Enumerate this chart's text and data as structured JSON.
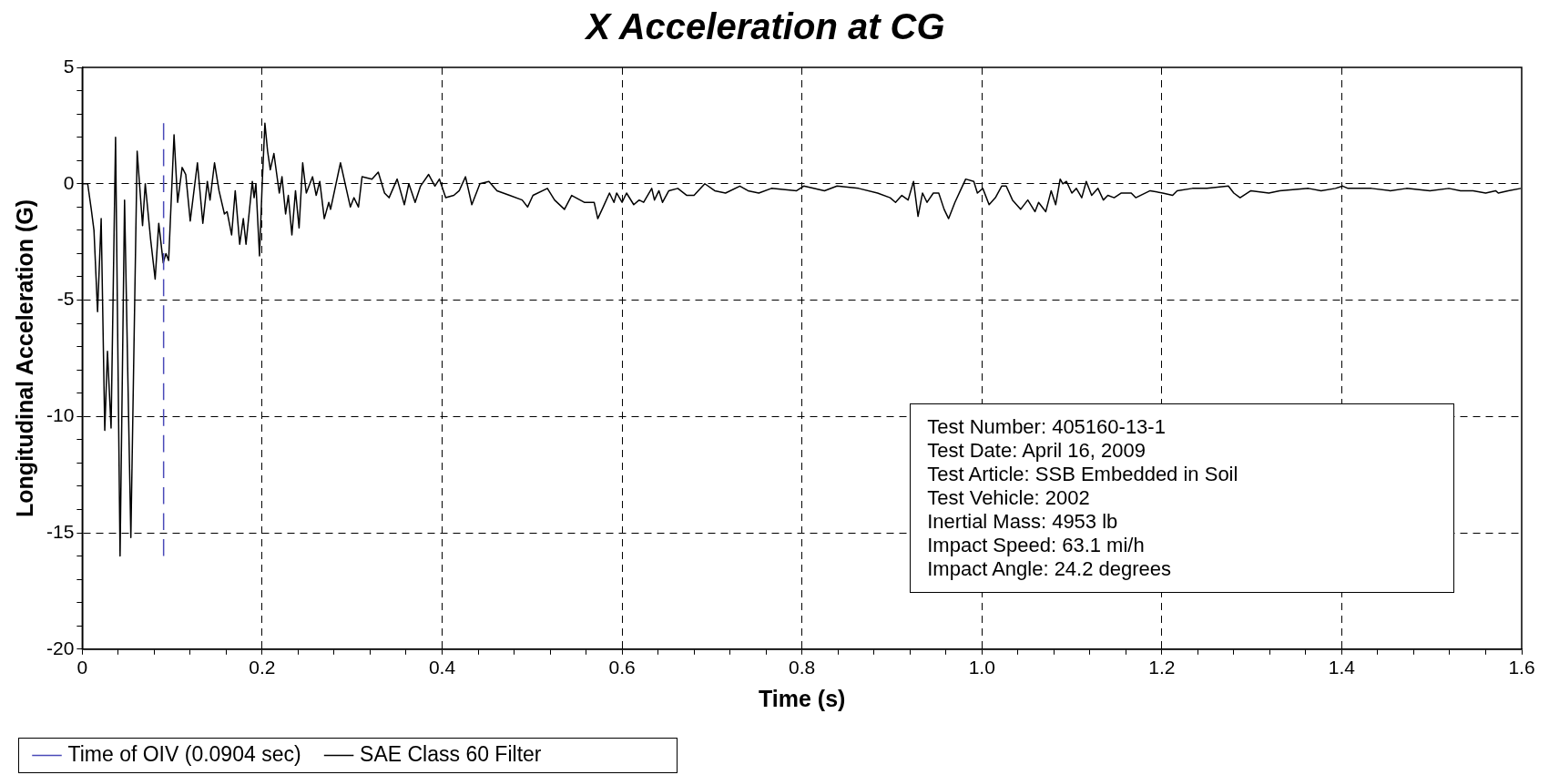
{
  "chart_data": {
    "type": "line",
    "title": "X Acceleration at CG",
    "xlabel": "Time (s)",
    "ylabel": "Longitudinal Acceleration (G)",
    "xlim": [
      0,
      1.6
    ],
    "xticks": [
      0,
      {
        "value": 0.04,
        "label": null
      },
      {
        "value": 0.08,
        "label": null
      },
      {
        "value": 0.12,
        "label": null
      },
      {
        "value": 0.16,
        "label": null
      },
      0.2,
      {
        "value": 0.24,
        "label": null
      },
      {
        "value": 0.28,
        "label": null
      },
      {
        "value": 0.32,
        "label": null
      },
      {
        "value": 0.36,
        "label": null
      },
      0.4,
      {
        "value": 0.44,
        "label": null
      },
      {
        "value": 0.48,
        "label": null
      },
      {
        "value": 0.52,
        "label": null
      },
      {
        "value": 0.56,
        "label": null
      },
      0.6,
      {
        "value": 0.64,
        "label": null
      },
      {
        "value": 0.68,
        "label": null
      },
      {
        "value": 0.72,
        "label": null
      },
      {
        "value": 0.76,
        "label": null
      },
      0.8,
      {
        "value": 0.84,
        "label": null
      },
      {
        "value": 0.88,
        "label": null
      },
      {
        "value": 0.92,
        "label": null
      },
      {
        "value": 0.96,
        "label": null
      },
      {
        "value": 1,
        "label": "1.0"
      },
      {
        "value": 1.04,
        "label": null
      },
      {
        "value": 1.08,
        "label": null
      },
      {
        "value": 1.12,
        "label": null
      },
      {
        "value": 1.16,
        "label": null
      },
      1.2,
      {
        "value": 1.24,
        "label": null
      },
      {
        "value": 1.28,
        "label": null
      },
      {
        "value": 1.32,
        "label": null
      },
      {
        "value": 1.36,
        "label": null
      },
      1.4,
      {
        "value": 1.44,
        "label": null
      },
      {
        "value": 1.48,
        "label": null
      },
      {
        "value": 1.52,
        "label": null
      },
      {
        "value": 1.56,
        "label": null
      },
      1.6
    ],
    "ylim": [
      -20,
      5
    ],
    "yticks": [
      -20,
      {
        "value": -19,
        "label": null
      },
      {
        "value": -18,
        "label": null
      },
      {
        "value": -17,
        "label": null
      },
      {
        "value": -16,
        "label": null
      },
      -15,
      {
        "value": -14,
        "label": null
      },
      {
        "value": -13,
        "label": null
      },
      {
        "value": -12,
        "label": null
      },
      {
        "value": -11,
        "label": null
      },
      -10,
      {
        "value": -9,
        "label": null
      },
      {
        "value": -8,
        "label": null
      },
      {
        "value": -7,
        "label": null
      },
      {
        "value": -6,
        "label": null
      },
      -5,
      {
        "value": -4,
        "label": null
      },
      {
        "value": -3,
        "label": null
      },
      {
        "value": -2,
        "label": null
      },
      {
        "value": -1,
        "label": null
      },
      0,
      {
        "value": 1,
        "label": null
      },
      {
        "value": 2,
        "label": null
      },
      {
        "value": 3,
        "label": null
      },
      {
        "value": 4,
        "label": null
      },
      5
    ],
    "grid": true,
    "legend": "bottom",
    "marker": "none",
    "annotations": [
      "Test Number: 405160-13-1",
      "Test Date: April 16, 2009",
      "Test Article: SSB Embedded in Soil",
      "Test Vehicle: 2002",
      "Inertial Mass: 4953 lb",
      "Impact Speed: 63.1 mi/h",
      "Impact Angle: 24.2 degrees"
    ],
    "series": [
      {
        "name": "Time of OIV (0.0904 sec)",
        "type": "line",
        "line_style": "dashed",
        "color": "#4a4ab8",
        "x": [
          0.0904,
          0.0904
        ],
        "values": [
          -16,
          2.6
        ]
      },
      {
        "name": "SAE Class 60 Filter",
        "type": "line",
        "line_style": "solid",
        "color": "#000000",
        "x": [
          0,
          0.006,
          0.01,
          0.013,
          0.017,
          0.021,
          0.025,
          0.028,
          0.032,
          0.037,
          0.042,
          0.047,
          0.054,
          0.061,
          0.067,
          0.07,
          0.076,
          0.081,
          0.085,
          0.09,
          0.093,
          0.096,
          0.102,
          0.106,
          0.111,
          0.115,
          0.12,
          0.128,
          0.134,
          0.139,
          0.142,
          0.147,
          0.152,
          0.158,
          0.161,
          0.166,
          0.17,
          0.175,
          0.179,
          0.182,
          0.189,
          0.191,
          0.193,
          0.197,
          0.2,
          0.203,
          0.206,
          0.209,
          0.213,
          0.219,
          0.222,
          0.226,
          0.229,
          0.233,
          0.237,
          0.241,
          0.245,
          0.249,
          0.256,
          0.26,
          0.264,
          0.269,
          0.274,
          0.276,
          0.287,
          0.298,
          0.302,
          0.307,
          0.311,
          0.322,
          0.329,
          0.336,
          0.341,
          0.35,
          0.358,
          0.363,
          0.37,
          0.376,
          0.385,
          0.392,
          0.397,
          0.404,
          0.413,
          0.419,
          0.426,
          0.433,
          0.442,
          0.452,
          0.461,
          0.475,
          0.489,
          0.495,
          0.501,
          0.517,
          0.525,
          0.536,
          0.544,
          0.558,
          0.569,
          0.573,
          0.579,
          0.586,
          0.591,
          0.594,
          0.6,
          0.605,
          0.613,
          0.619,
          0.624,
          0.633,
          0.636,
          0.641,
          0.645,
          0.652,
          0.662,
          0.672,
          0.68,
          0.692,
          0.703,
          0.715,
          0.731,
          0.74,
          0.752,
          0.766,
          0.794,
          0.802,
          0.825,
          0.839,
          0.863,
          0.884,
          0.898,
          0.904,
          0.911,
          0.918,
          0.924,
          0.929,
          0.934,
          0.939,
          0.946,
          0.952,
          0.958,
          0.963,
          0.97,
          0.976,
          0.982,
          0.991,
          0.995,
          1.001,
          1.008,
          1.015,
          1.022,
          1.027,
          1.034,
          1.043,
          1.051,
          1.059,
          1.063,
          1.071,
          1.077,
          1.082,
          1.087,
          1.09,
          1.094,
          1.1,
          1.105,
          1.111,
          1.116,
          1.122,
          1.129,
          1.135,
          1.14,
          1.147,
          1.155,
          1.166,
          1.171,
          1.187,
          1.201,
          1.212,
          1.217,
          1.234,
          1.25,
          1.274,
          1.28,
          1.287,
          1.299,
          1.319,
          1.331,
          1.363,
          1.377,
          1.393,
          1.401,
          1.407,
          1.433,
          1.454,
          1.472,
          1.498,
          1.519,
          1.532,
          1.546,
          1.56,
          1.571,
          1.574,
          1.585,
          1.599
        ],
        "values": [
          0,
          0,
          -1.1,
          -2,
          -5.5,
          -1.5,
          -10.6,
          -7.2,
          -10.5,
          2.0,
          -16.0,
          -0.7,
          -15.2,
          1.4,
          -1.8,
          0,
          -2.4,
          -4.1,
          -1.7,
          -3.4,
          -3.0,
          -3.3,
          2.1,
          -0.8,
          0.7,
          0.4,
          -1.6,
          0.9,
          -1.7,
          0.1,
          -0.7,
          0.9,
          -0.3,
          -1.3,
          -1.2,
          -2.2,
          -0.3,
          -2.6,
          -1.5,
          -2.6,
          0.1,
          -0.6,
          0,
          -3.1,
          0,
          2.6,
          1.4,
          0.6,
          1.3,
          -0.4,
          0.3,
          -1.3,
          -0.5,
          -2.2,
          -0.3,
          -1.9,
          0.9,
          -0.4,
          0.3,
          -0.5,
          0.1,
          -1.5,
          -0.8,
          -1.1,
          0.9,
          -1.0,
          -0.6,
          -1.0,
          0.3,
          0.2,
          0.5,
          -0.4,
          -0.6,
          0.2,
          -0.9,
          0,
          -0.8,
          -0.1,
          0.4,
          -0.1,
          0.2,
          -0.6,
          -0.5,
          -0.3,
          0.3,
          -0.9,
          0,
          0.1,
          -0.3,
          -0.5,
          -0.7,
          -1.0,
          -0.5,
          -0.2,
          -0.7,
          -1.1,
          -0.5,
          -0.8,
          -0.8,
          -1.5,
          -1.0,
          -0.4,
          -0.8,
          -0.4,
          -0.8,
          -0.4,
          -0.9,
          -0.7,
          -0.8,
          -0.2,
          -0.7,
          -0.3,
          -0.8,
          -0.3,
          -0.2,
          -0.5,
          -0.5,
          0,
          -0.3,
          -0.4,
          -0.1,
          -0.3,
          -0.4,
          -0.2,
          -0.3,
          -0.1,
          -0.3,
          -0.1,
          -0.2,
          -0.4,
          -0.6,
          -0.8,
          -0.5,
          -0.7,
          0.1,
          -1.4,
          -0.4,
          -0.8,
          -0.4,
          -0.4,
          -1.1,
          -1.5,
          -0.8,
          -0.3,
          0.2,
          0.1,
          -0.4,
          -0.2,
          -0.9,
          -0.6,
          -0.1,
          -0.1,
          -0.7,
          -1.1,
          -0.7,
          -1.2,
          -0.8,
          -1.2,
          -0.3,
          -0.9,
          0.2,
          0,
          0.1,
          -0.4,
          -0.2,
          -0.6,
          0.1,
          -0.5,
          -0.2,
          -0.7,
          -0.5,
          -0.6,
          -0.4,
          -0.4,
          -0.6,
          -0.3,
          -0.4,
          -0.5,
          -0.3,
          -0.2,
          -0.2,
          -0.1,
          -0.4,
          -0.6,
          -0.3,
          -0.4,
          -0.3,
          -0.2,
          -0.3,
          -0.2,
          -0.1,
          -0.2,
          -0.2,
          -0.3,
          -0.2,
          -0.3,
          -0.2,
          -0.3,
          -0.3,
          -0.4,
          -0.3,
          -0.4,
          -0.3,
          -0.2
        ]
      }
    ]
  }
}
